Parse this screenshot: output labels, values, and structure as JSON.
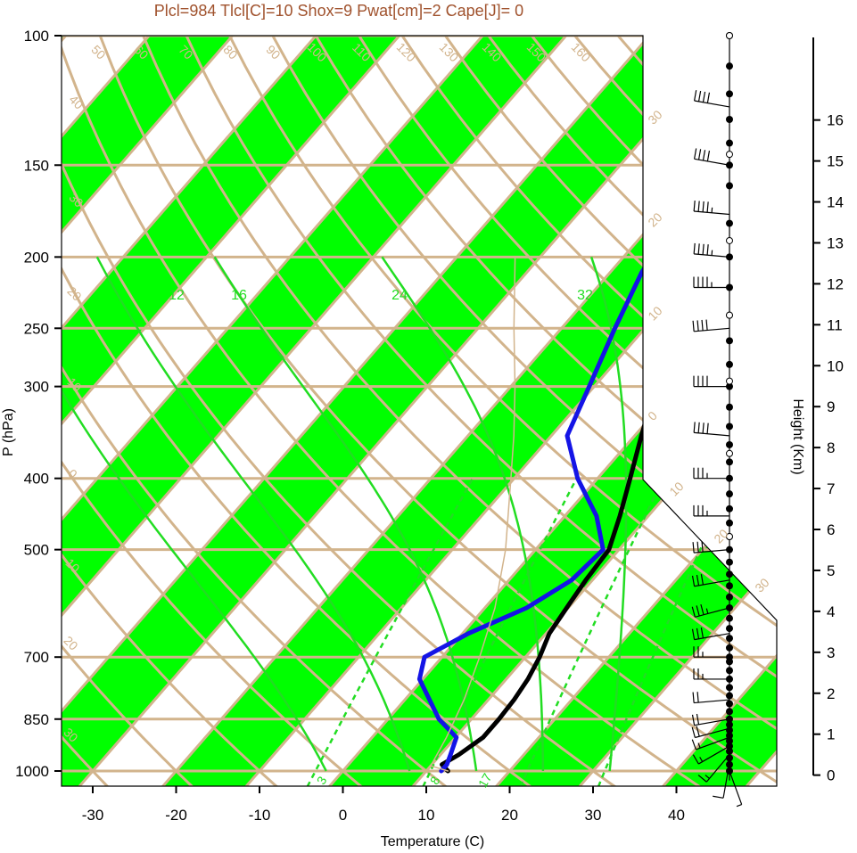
{
  "title": "Plcl=984 Tlcl[C]=10 Shox=9 Pwat[cm]=2 Cape[J]= 0",
  "colors": {
    "stripe": "#00ff00",
    "isotherm_isobar": "#d2b48c",
    "mixing_ratio": "#22dd22",
    "temperature_line": "#000000",
    "dewpoint_line": "#1414e6",
    "parcel": "#d2b48c",
    "title": "#a0522d"
  },
  "chart_data": {
    "type": "line",
    "title": "Plcl=984 Tlcl[C]=10 Shox=9 Pwat[cm]=2 Cape[J]= 0",
    "xlabel": "Temperature (C)",
    "ylabel": "P (hPa)",
    "y2label": "Height (Km)",
    "x_ticks": [
      "-30",
      "-20",
      "-10",
      "0",
      "10",
      "20",
      "30",
      "40"
    ],
    "y_ticks": [
      "100",
      "150",
      "200",
      "250",
      "300",
      "400",
      "500",
      "700",
      "850",
      "1000"
    ],
    "height_ticks": [
      "0",
      "1",
      "2",
      "3",
      "4",
      "5",
      "6",
      "7",
      "8",
      "9",
      "10",
      "11",
      "12",
      "13",
      "14",
      "15",
      "16"
    ],
    "isotherm_labels": [
      "50",
      "60",
      "70",
      "80",
      "90",
      "100",
      "110",
      "120",
      "130",
      "140",
      "150",
      "160"
    ],
    "right_labels": [
      "30",
      "20",
      "10",
      "0",
      "10",
      "20",
      "30"
    ],
    "left_labels": [
      "40",
      "30",
      "20",
      "10",
      "0",
      "10",
      "20",
      "30"
    ],
    "mixing_labels_top": [
      "12",
      "16",
      "24",
      "32"
    ],
    "mixing_labels_bottom": [
      "3",
      "8",
      "17"
    ],
    "xlim": [
      -34,
      52
    ],
    "ylim": [
      1050,
      100
    ],
    "series": [
      {
        "key": "temperature",
        "points": [
          [
            12.6,
            1000
          ],
          [
            11.2,
            980
          ],
          [
            12.2,
            950
          ],
          [
            13.3,
            900
          ],
          [
            13.3,
            850
          ],
          [
            13.1,
            800
          ],
          [
            12.6,
            750
          ],
          [
            11.7,
            700
          ],
          [
            10.4,
            650
          ],
          [
            9.8,
            600
          ],
          [
            9.2,
            550
          ],
          [
            8.8,
            500
          ],
          [
            6.6,
            450
          ],
          [
            3.9,
            400
          ],
          [
            0.8,
            350
          ],
          [
            -2.6,
            300
          ],
          [
            -6.5,
            250
          ],
          [
            -9.9,
            215
          ],
          [
            -11.9,
            195
          ],
          [
            -13.3,
            175
          ],
          [
            -11.4,
            160
          ],
          [
            -7.5,
            150
          ],
          [
            -2.5,
            140
          ],
          [
            -0.2,
            130
          ],
          [
            2.6,
            120
          ],
          [
            5.4,
            112
          ],
          [
            7.6,
            106
          ],
          [
            9.6,
            101
          ]
        ]
      },
      {
        "key": "dewpoint",
        "points": [
          [
            11.8,
            1000
          ],
          [
            11.8,
            980
          ],
          [
            11.2,
            950
          ],
          [
            10.1,
            900
          ],
          [
            6.1,
            850
          ],
          [
            -0.4,
            750
          ],
          [
            -2.1,
            700
          ],
          [
            0.7,
            650
          ],
          [
            5.0,
            600
          ],
          [
            7.5,
            550
          ],
          [
            8.1,
            500
          ],
          [
            3.8,
            450
          ],
          [
            -2.4,
            400
          ],
          [
            -8.1,
            350
          ],
          [
            -10.6,
            300
          ],
          [
            -13.6,
            250
          ],
          [
            -16.2,
            210
          ],
          [
            -16.8,
            195
          ],
          [
            -15.3,
            175
          ],
          [
            -12.6,
            160
          ],
          [
            -12.4,
            150
          ],
          [
            -10.4,
            140
          ],
          [
            -9.1,
            130
          ],
          [
            -6.8,
            117
          ],
          [
            -5.3,
            106
          ],
          [
            -4.4,
            101
          ]
        ]
      },
      {
        "key": "parcel",
        "points": [
          [
            12.6,
            1000
          ],
          [
            10,
            984
          ],
          [
            8.9,
            900
          ],
          [
            7.1,
            800
          ],
          [
            4.5,
            700
          ],
          [
            1.2,
            600
          ],
          [
            -3.6,
            500
          ],
          [
            -10.4,
            400
          ],
          [
            -14.5,
            350
          ],
          [
            -19.5,
            300
          ],
          [
            -25.7,
            250
          ],
          [
            -33,
            200
          ]
        ]
      }
    ],
    "wind_barbs": [
      {
        "p": 1000,
        "dir": 160,
        "kt": 5
      },
      {
        "p": 975,
        "dir": 190,
        "kt": 10
      },
      {
        "p": 950,
        "dir": 220,
        "kt": 15
      },
      {
        "p": 925,
        "dir": 240,
        "kt": 15
      },
      {
        "p": 900,
        "dir": 250,
        "kt": 15
      },
      {
        "p": 875,
        "dir": 255,
        "kt": 20
      },
      {
        "p": 850,
        "dir": 260,
        "kt": 20
      },
      {
        "p": 800,
        "dir": 265,
        "kt": 20
      },
      {
        "p": 750,
        "dir": 270,
        "kt": 25
      },
      {
        "p": 700,
        "dir": 270,
        "kt": 25
      },
      {
        "p": 650,
        "dir": 260,
        "kt": 30
      },
      {
        "p": 600,
        "dir": 255,
        "kt": 35
      },
      {
        "p": 550,
        "dir": 260,
        "kt": 30
      },
      {
        "p": 500,
        "dir": 265,
        "kt": 30
      },
      {
        "p": 450,
        "dir": 270,
        "kt": 35
      },
      {
        "p": 400,
        "dir": 270,
        "kt": 35
      },
      {
        "p": 350,
        "dir": 275,
        "kt": 40
      },
      {
        "p": 300,
        "dir": 270,
        "kt": 40
      },
      {
        "p": 250,
        "dir": 265,
        "kt": 40
      },
      {
        "p": 220,
        "dir": 270,
        "kt": 45
      },
      {
        "p": 200,
        "dir": 275,
        "kt": 45
      },
      {
        "p": 175,
        "dir": 275,
        "kt": 45
      },
      {
        "p": 150,
        "dir": 280,
        "kt": 40
      },
      {
        "p": 125,
        "dir": 280,
        "kt": 40
      }
    ],
    "barb_dots_filled": [
      1000,
      980,
      960,
      940,
      925,
      910,
      895,
      880,
      865,
      850,
      830,
      810,
      790,
      770,
      750,
      730,
      710,
      700,
      680,
      660,
      640,
      620,
      600,
      580,
      560,
      540,
      520,
      500,
      480,
      460,
      440,
      420,
      400,
      380,
      360,
      340,
      320,
      300,
      280,
      260,
      240,
      220,
      200,
      180,
      160,
      150,
      140,
      130,
      120,
      110,
      100
    ],
    "barb_dots_open": [
      100,
      145,
      190,
      240,
      295,
      370,
      480
    ]
  }
}
